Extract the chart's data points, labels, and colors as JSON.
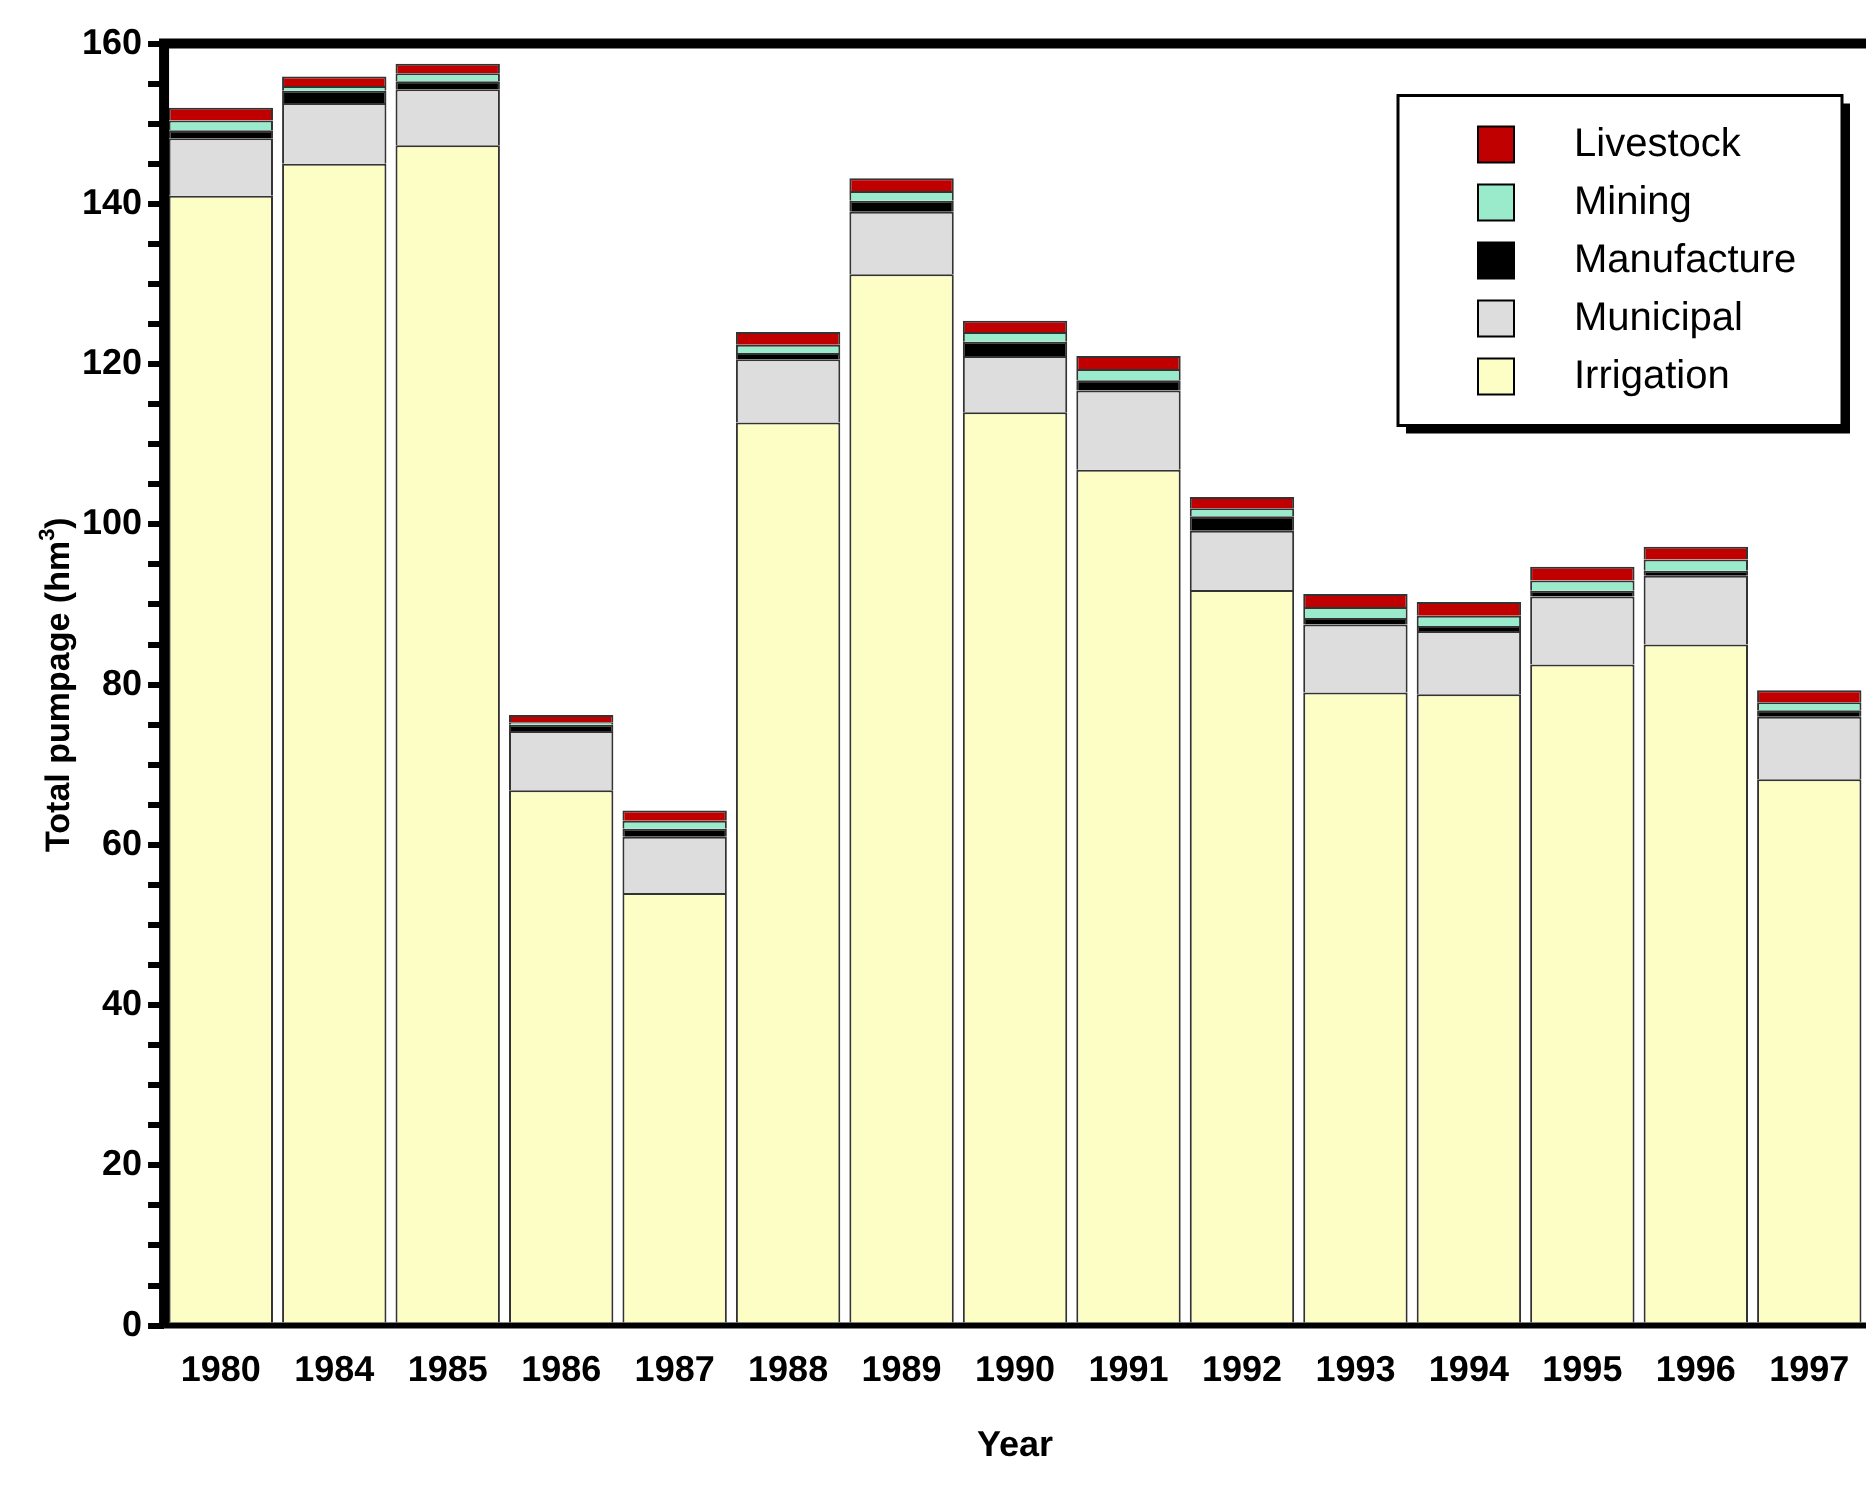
{
  "chart_data": {
    "type": "bar",
    "stacked": true,
    "xlabel": "Year",
    "ylabel": "Total pumpage (hm$^{3}$)",
    "categories": [
      "1980",
      "1984",
      "1985",
      "1986",
      "1987",
      "1988",
      "1989",
      "1990",
      "1991",
      "1992",
      "1993",
      "1994",
      "1995",
      "1996",
      "1997"
    ],
    "series": [
      {
        "name": "Irrigation",
        "color": "#fdfdc6",
        "values": [
          141,
          145,
          147.3,
          66.8,
          54,
          112.7,
          131.2,
          114,
          106.8,
          91.8,
          79,
          78.8,
          82.5,
          85,
          68.2
        ]
      },
      {
        "name": "Municipal",
        "color": "#dcdddc",
        "values": [
          7.2,
          7.6,
          7,
          7.4,
          7,
          7.9,
          7.8,
          7,
          9.9,
          7.4,
          8.5,
          7.9,
          8.5,
          8.6,
          7.8
        ]
      },
      {
        "name": "Manufacture",
        "color": "#000000",
        "values": [
          1,
          1.5,
          1,
          0.8,
          1,
          0.8,
          1.4,
          1.8,
          1.3,
          1.8,
          0.8,
          0.6,
          0.7,
          0.6,
          0.8
        ]
      },
      {
        "name": "Mining",
        "color": "#99ebcc",
        "values": [
          1.2,
          0.6,
          1,
          0.3,
          1,
          1,
          1.2,
          1.2,
          1.4,
          1,
          1.4,
          1.3,
          1.3,
          1.4,
          1
        ]
      },
      {
        "name": "Livestock",
        "color": "#c00000",
        "values": [
          1.6,
          1.2,
          1.2,
          0.9,
          1.3,
          1.6,
          1.6,
          1.4,
          1.6,
          1.4,
          1.6,
          1.7,
          1.7,
          1.6,
          1.5
        ]
      }
    ],
    "ylim": [
      0,
      160
    ],
    "yticks": [
      0,
      {
        "value": 5,
        "label": null
      },
      {
        "value": 10,
        "label": null
      },
      {
        "value": 15,
        "label": null
      },
      20,
      {
        "value": 25,
        "label": null
      },
      {
        "value": 30,
        "label": null
      },
      {
        "value": 35,
        "label": null
      },
      40,
      {
        "value": 45,
        "label": null
      },
      {
        "value": 50,
        "label": null
      },
      {
        "value": 55,
        "label": null
      },
      60,
      {
        "value": 65,
        "label": null
      },
      {
        "value": 70,
        "label": null
      },
      {
        "value": 75,
        "label": null
      },
      80,
      {
        "value": 85,
        "label": null
      },
      {
        "value": 90,
        "label": null
      },
      {
        "value": 95,
        "label": null
      },
      100,
      {
        "value": 105,
        "label": null
      },
      {
        "value": 110,
        "label": null
      },
      {
        "value": 115,
        "label": null
      },
      120,
      {
        "value": 125,
        "label": null
      },
      {
        "value": 130,
        "label": null
      },
      {
        "value": 135,
        "label": null
      },
      140,
      {
        "value": 145,
        "label": null
      },
      {
        "value": 150,
        "label": null
      },
      {
        "value": 155,
        "label": null
      },
      160
    ],
    "grid": false,
    "legend": "top right"
  }
}
